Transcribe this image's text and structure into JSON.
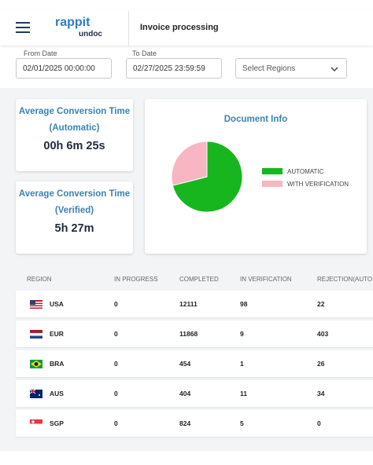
{
  "header": {
    "logo_top": "rappit",
    "logo_bottom": "undoc",
    "title": "Invoice processing"
  },
  "filters": {
    "from_label": "From Date",
    "from_value": "02/01/2025 00:00:00",
    "to_label": "To Date",
    "to_value": "02/27/2025 23:59:59",
    "regions_placeholder": "Select Regions"
  },
  "cards": [
    {
      "title": "Average Conversion Time",
      "subtitle": "(Automatic)",
      "value": "00h 6m 25s"
    },
    {
      "title": "Average Conversion Time",
      "subtitle": "(Verified)",
      "value": "5h 27m"
    }
  ],
  "chart_data": {
    "type": "pie",
    "title": "Document Info",
    "categories": [
      "AUTOMATIC",
      "WITH VERIFICATION"
    ],
    "values": [
      71,
      29
    ],
    "colors": [
      "#17b61f",
      "#f7b6c1"
    ],
    "legend": "right"
  },
  "table": {
    "columns": [
      "REGION",
      "IN PROGRESS",
      "COMPLETED",
      "IN VERIFICATION",
      "REJECTION(AUTO"
    ],
    "rows": [
      [
        "USA",
        0,
        12111,
        98,
        22
      ],
      [
        "EUR",
        0,
        11868,
        9,
        403
      ],
      [
        "BRA",
        0,
        454,
        1,
        26
      ],
      [
        "AUS",
        0,
        404,
        11,
        34
      ],
      [
        "SGP",
        0,
        824,
        5,
        0
      ]
    ]
  }
}
